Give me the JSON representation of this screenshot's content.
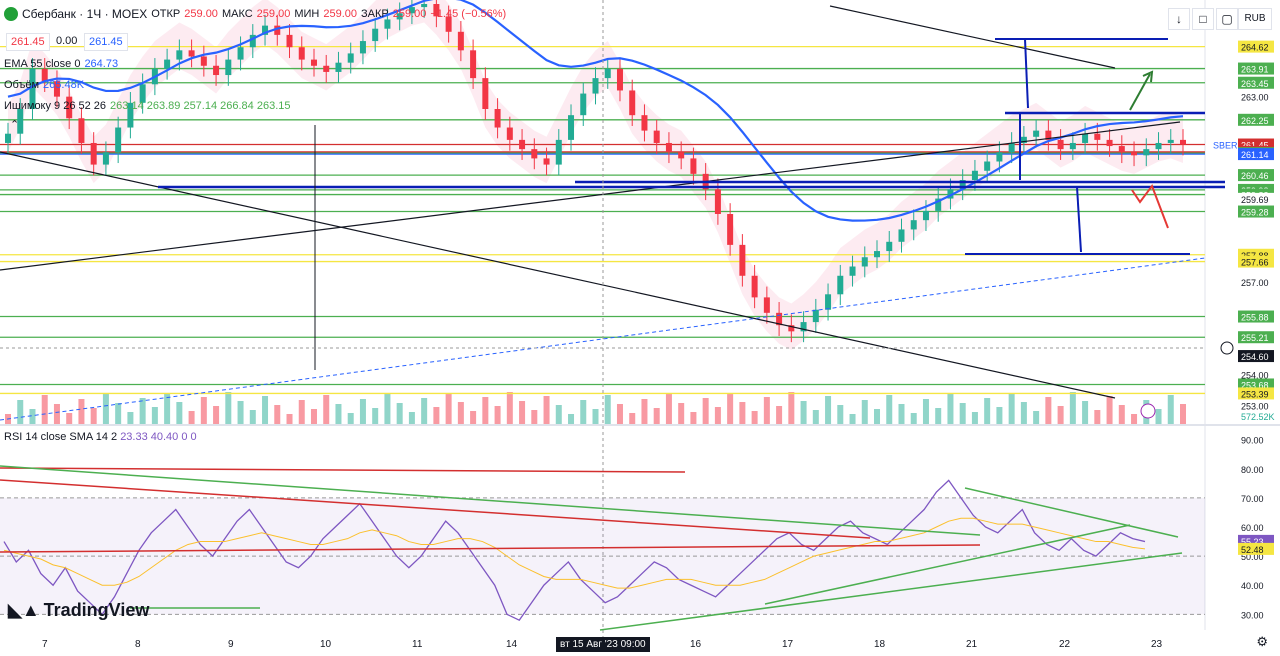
{
  "header": {
    "symbol": "Сбербанк · 1Ч · MOEX",
    "open_label": "ОТКР",
    "open": "259.00",
    "high_label": "МАКС",
    "high": "259.00",
    "low_label": "МИН",
    "low": "259.00",
    "close_label": "ЗАКР",
    "close": "259.00",
    "change": "−1.45 (−0.56%)",
    "price_left": "261.45",
    "spread": "0.00",
    "price_right": "261.45",
    "currency": "RUB"
  },
  "legends": {
    "ema": "EMA 55 close 0",
    "ema_val": "264.73",
    "volume": "Объём",
    "volume_val": "265.48K",
    "ichimoku": "Ишимоку 9 26 52 26",
    "ichimoku_vals": "263.14  263.89  257.14  266.84  263.15",
    "rsi": "RSI 14 close SMA 14 2",
    "rsi_vals": "23.33  40.40  0  0"
  },
  "toolbar": {
    "down": "↓",
    "box": "□",
    "expand": "⤢",
    "window": "▢"
  },
  "watermark": "TradingView",
  "time_axis": [
    "7",
    "8",
    "9",
    "10",
    "11",
    "14",
    "16",
    "17",
    "18",
    "21",
    "22",
    "23"
  ],
  "time_highlight": "вт 15 Авг '23   09:00",
  "colors": {
    "up": "#22ab94",
    "down": "#f23645",
    "ema": "#2962ff",
    "blueline": "#0a1eb4",
    "red": "#d32f2f",
    "green": "#4caf50",
    "yellow": "#f5e642",
    "rsi": "#7e57c2"
  },
  "chart_data": [
    {
      "type": "candlestick",
      "title": "Сбербанк · 1Ч · MOEX",
      "ylim": [
        252.4,
        266.0
      ],
      "price_ticks": [
        "263.00",
        "257.00",
        "254.00",
        "253.00"
      ],
      "levels": [
        {
          "price": 264.62,
          "color": "#f5e642",
          "label": "264.62"
        },
        {
          "price": 263.91,
          "color": "#4caf50",
          "label": "263.91"
        },
        {
          "price": 263.45,
          "color": "#4caf50",
          "label": "263.45"
        },
        {
          "price": 262.25,
          "color": "#4caf50",
          "label": "262.25"
        },
        {
          "price": 261.45,
          "color": "#d32f2f",
          "label": "261.45"
        },
        {
          "price": 261.21,
          "color": "#d32f2f",
          "label": "261.21"
        },
        {
          "price": 261.17,
          "color": "#4caf50",
          "label": "261.17"
        },
        {
          "price": 261.14,
          "color": "#2962ff",
          "label": "261.14"
        },
        {
          "price": 260.46,
          "color": "#4caf50",
          "label": "260.46"
        },
        {
          "price": 259.98,
          "color": "#4caf50",
          "label": "259.98"
        },
        {
          "price": 259.83,
          "color": "#4caf50",
          "label": "259.83"
        },
        {
          "price": 259.69,
          "color": "#ffffff",
          "label": "259.69"
        },
        {
          "price": 259.28,
          "color": "#4caf50",
          "label": "259.28"
        },
        {
          "price": 257.88,
          "color": "#f5e642",
          "label": "257.88"
        },
        {
          "price": 257.66,
          "color": "#f5e642",
          "label": "257.66"
        },
        {
          "price": 255.88,
          "color": "#4caf50",
          "label": "255.88"
        },
        {
          "price": 255.21,
          "color": "#4caf50",
          "label": "255.21"
        },
        {
          "price": 254.6,
          "color": "#131722",
          "label": "254.60"
        },
        {
          "price": 253.68,
          "color": "#4caf50",
          "label": "253.68"
        },
        {
          "price": 253.39,
          "color": "#f5e642",
          "label": "253.39"
        }
      ],
      "symbol_tag": "SBER",
      "volume_tag": "572.52K",
      "close_series": [
        261.8,
        262.6,
        263.9,
        263.5,
        263.0,
        262.3,
        261.5,
        260.8,
        261.2,
        262.0,
        262.8,
        263.4,
        263.9,
        264.2,
        264.5,
        264.3,
        264.0,
        263.7,
        264.2,
        264.6,
        265.0,
        265.3,
        265.0,
        264.6,
        264.2,
        264.0,
        263.8,
        264.1,
        264.4,
        264.8,
        265.2,
        265.5,
        265.7,
        265.9,
        266.0,
        265.6,
        265.1,
        264.5,
        263.6,
        262.6,
        262.0,
        261.6,
        261.3,
        261.0,
        260.8,
        261.6,
        262.4,
        263.1,
        263.6,
        263.9,
        263.2,
        262.4,
        261.9,
        261.5,
        261.2,
        261.0,
        260.5,
        260.0,
        259.2,
        258.2,
        257.2,
        256.5,
        256.0,
        255.6,
        255.4,
        255.7,
        256.1,
        256.6,
        257.2,
        257.5,
        257.8,
        258.0,
        258.3,
        258.7,
        259.0,
        259.3,
        259.7,
        260.0,
        260.3,
        260.6,
        260.9,
        261.2,
        261.5,
        261.7,
        261.9,
        261.6,
        261.3,
        261.5,
        261.8,
        261.6,
        261.4,
        261.2,
        261.1,
        261.3,
        261.5,
        261.6,
        261.45
      ]
    },
    {
      "type": "line",
      "title": "RSI 14 close SMA 14 2",
      "ylim": [
        26,
        94
      ],
      "y_ticks": [
        "90.00",
        "80.00",
        "70.00",
        "60.00",
        "50.00",
        "40.00",
        "30.00"
      ],
      "current": [
        "55.23",
        "52.48"
      ],
      "series": [
        {
          "name": "RSI",
          "values": [
            55,
            48,
            52,
            44,
            40,
            46,
            38,
            34,
            30,
            36,
            44,
            52,
            58,
            62,
            66,
            60,
            54,
            50,
            56,
            62,
            66,
            60,
            54,
            48,
            46,
            50,
            56,
            60,
            64,
            68,
            62,
            56,
            50,
            46,
            50,
            56,
            62,
            58,
            52,
            46,
            40,
            30,
            28,
            34,
            40,
            44,
            48,
            42,
            38,
            34,
            36,
            40,
            44,
            48,
            46,
            42,
            40,
            38,
            36,
            40,
            44,
            48,
            52,
            56,
            58,
            54,
            52,
            56,
            60,
            62,
            58,
            56,
            54,
            58,
            62,
            66,
            72,
            76,
            70,
            64,
            60,
            58,
            62,
            66,
            58,
            54,
            52,
            56,
            52,
            50,
            54,
            58,
            56,
            55
          ]
        },
        {
          "name": "SMA",
          "values": [
            52,
            51,
            50,
            49,
            47,
            46,
            44,
            42,
            40,
            40,
            41,
            43,
            46,
            49,
            52,
            54,
            55,
            55,
            55,
            56,
            57,
            58,
            57,
            56,
            55,
            54,
            54,
            55,
            56,
            58,
            59,
            58,
            57,
            55,
            54,
            54,
            55,
            56,
            56,
            55,
            53,
            50,
            47,
            45,
            43,
            42,
            42,
            42,
            41,
            40,
            39,
            39,
            40,
            41,
            42,
            42,
            42,
            41,
            40,
            40,
            40,
            41,
            42,
            44,
            46,
            48,
            50,
            51,
            52,
            53,
            54,
            55,
            55,
            56,
            57,
            58,
            60,
            62,
            63,
            63,
            62,
            61,
            61,
            61,
            60,
            59,
            58,
            57,
            56,
            55,
            55,
            54,
            53,
            52.48
          ]
        }
      ]
    }
  ]
}
